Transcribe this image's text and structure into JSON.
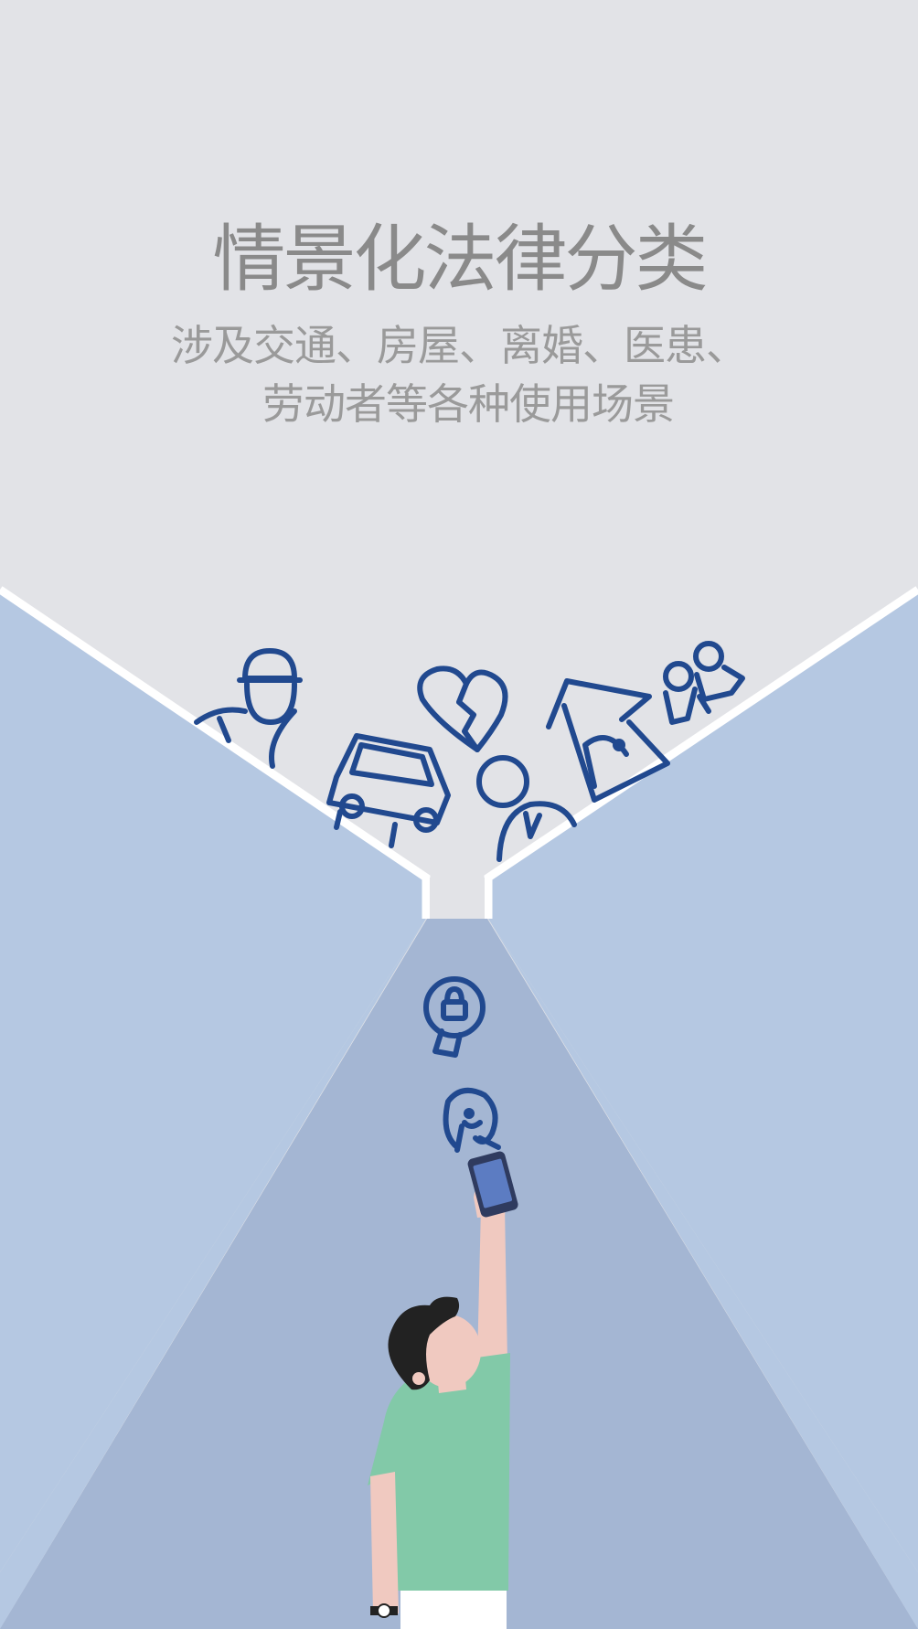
{
  "title": "情景化法律分类",
  "subtitle": {
    "line1": "涉及交通、房屋、离婚、医患、",
    "line2": "劳动者等各种使用场景"
  },
  "colors": {
    "top_background": "#e2e3e7",
    "side_panel": "#b5c8e2",
    "light_beam": "#a4b6d3",
    "icon_stroke": "#21498f",
    "divider": "#ffffff",
    "title_text": "#8a8a8a",
    "shirt": "#82c9a8",
    "skin": "#f0c9c0",
    "hair": "#222222",
    "phone": "#3c5a95"
  },
  "icons": [
    "worker-icon",
    "car-icon",
    "broken-heart-icon",
    "person-with-tie-icon",
    "house-icon",
    "family-icon",
    "lightbulb-lock-icon",
    "thinking-face-icon"
  ],
  "illustration": "person-holding-phone"
}
